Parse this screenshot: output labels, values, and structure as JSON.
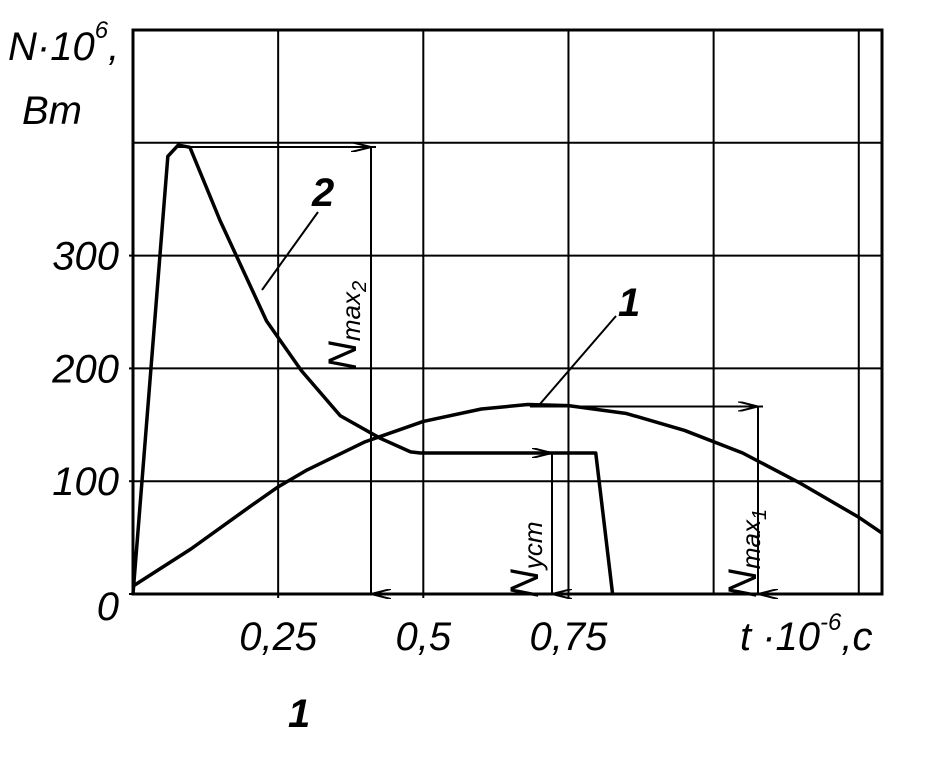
{
  "chart_data": {
    "type": "line",
    "ylabel": {
      "base": "N·10",
      "exp": "6",
      "sep": ","
    },
    "yunit": "Вт",
    "xlabel": {
      "base": "t ·10",
      "exp": "-6",
      "unit": ",c"
    },
    "xlim": [
      0,
      1.29
    ],
    "ylim": [
      0,
      500
    ],
    "xticks": [
      {
        "value": 0.25,
        "label": "0,25"
      },
      {
        "value": 0.5,
        "label": "0,5"
      },
      {
        "value": 0.75,
        "label": "0,75"
      }
    ],
    "yticks": [
      0,
      100,
      200,
      300
    ],
    "xgrid": [
      0.25,
      0.5,
      0.75,
      1,
      1.25
    ],
    "ygrid": [
      100,
      200,
      300,
      400
    ],
    "grid": true,
    "series": [
      {
        "name": "1",
        "color": "#000000",
        "x": [
          0,
          0.1,
          0.2,
          0.25,
          0.3,
          0.4,
          0.5,
          0.6,
          0.68,
          0.75,
          0.85,
          0.95,
          1.05,
          1.15,
          1.25,
          1.29
        ],
        "values": [
          7,
          40,
          77,
          95,
          110,
          135,
          153,
          164,
          168,
          167,
          160,
          145,
          125,
          98,
          68,
          54
        ]
      },
      {
        "name": "2",
        "color": "#000000",
        "x": [
          0,
          0.06,
          0.078,
          0.098,
          0.15,
          0.23,
          0.29,
          0.357,
          0.426,
          0.478,
          0.495,
          0.797,
          0.826
        ],
        "values": [
          0,
          388,
          398,
          396,
          331,
          242,
          198,
          158,
          138,
          126,
          125,
          125,
          0
        ]
      }
    ],
    "annotations": [
      {
        "main": "N",
        "sub": "max",
        "index": "2"
      },
      {
        "main": "N",
        "sub": "уст"
      },
      {
        "main": "N",
        "sub": "max",
        "index": "1"
      }
    ],
    "caption": "1"
  }
}
